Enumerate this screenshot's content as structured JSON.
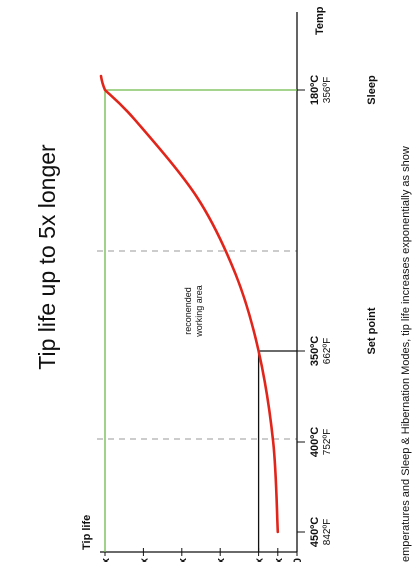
{
  "chart_data": {
    "type": "line",
    "title": "Tip life up to 5x longer",
    "ylabel": "Tip life",
    "xlabel": "Temp",
    "y_ticks": [
      "0",
      "1/2x",
      "1x",
      "2x",
      "3x",
      "4x",
      "5x"
    ],
    "ylim": [
      0,
      5
    ],
    "x_ticks": [
      {
        "c": "450ºC",
        "f": "842ºF"
      },
      {
        "c": "400ºC",
        "f": "752ºF"
      },
      {
        "c": "350ºC",
        "f": "662ºF"
      },
      {
        "c": "180ºC",
        "f": "356ºF"
      }
    ],
    "reference_labels": {
      "set_point": "Set point",
      "sleep": "Sleep"
    },
    "series": [
      {
        "color": "#e1251b",
        "points": [
          {
            "temp_c": 450,
            "life": 0.5
          },
          {
            "temp_c": 400,
            "life": 0.62
          },
          {
            "temp_c": 350,
            "life": 1.0
          },
          {
            "temp_c": 300,
            "life": 1.6
          },
          {
            "temp_c": 250,
            "life": 2.6
          },
          {
            "temp_c": 200,
            "life": 4.2
          },
          {
            "temp_c": 180,
            "life": 5.0
          }
        ]
      }
    ],
    "region_label": "reconended\nworking area",
    "caption": "emperatures and Sleep & Hibernation Modes, tip life increases exponentially as show",
    "colors": {
      "curve": "#e1251b",
      "sleep_guide": "#6dbb4a",
      "setpoint_guide": "#111111",
      "dashed": "#999999"
    }
  }
}
